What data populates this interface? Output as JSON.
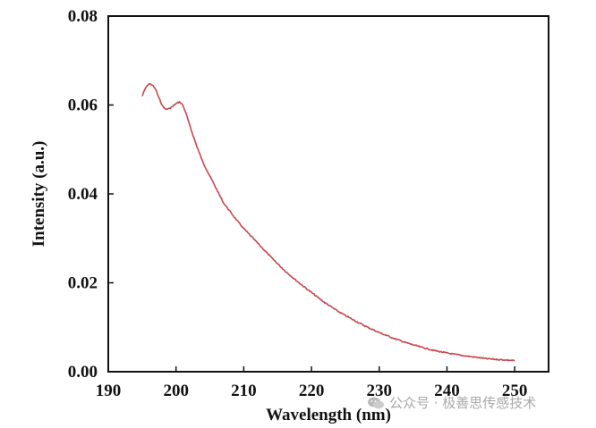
{
  "chart_data": {
    "type": "line",
    "title": "",
    "xlabel": "Wavelength (nm)",
    "ylabel": "Intensity (a.u.)",
    "xlim": [
      190,
      255
    ],
    "ylim": [
      0.0,
      0.08
    ],
    "x_ticks": [
      190,
      200,
      210,
      220,
      230,
      240,
      250
    ],
    "x_tick_labels": [
      "190",
      "200",
      "210",
      "220",
      "230",
      "240",
      "250"
    ],
    "y_ticks": [
      0.0,
      0.02,
      0.04,
      0.06,
      0.08
    ],
    "y_tick_labels": [
      "0.00",
      "0.02",
      "0.04",
      "0.06",
      "0.08"
    ],
    "grid": false,
    "legend": "none",
    "series": [
      {
        "color": "#c8474e",
        "x": [
          195,
          195.5,
          196,
          196.5,
          197,
          197.5,
          198,
          198.5,
          199,
          199.5,
          200,
          200.5,
          201,
          201.5,
          202,
          203,
          204,
          205,
          206,
          207,
          208,
          209,
          210,
          212,
          214,
          216,
          218,
          220,
          222,
          224,
          226,
          228,
          230,
          232,
          234,
          236,
          238,
          240,
          242,
          244,
          246,
          248,
          250
        ],
        "y": [
          0.062,
          0.0638,
          0.0648,
          0.0645,
          0.0635,
          0.0615,
          0.0598,
          0.059,
          0.0592,
          0.0597,
          0.0603,
          0.0607,
          0.06,
          0.058,
          0.0555,
          0.051,
          0.047,
          0.044,
          0.041,
          0.038,
          0.036,
          0.034,
          0.0322,
          0.029,
          0.0258,
          0.0228,
          0.0202,
          0.0178,
          0.0155,
          0.0135,
          0.0118,
          0.0102,
          0.0088,
          0.0076,
          0.0065,
          0.0056,
          0.0048,
          0.0042,
          0.0037,
          0.0033,
          0.0029,
          0.0027,
          0.0025
        ]
      }
    ]
  },
  "watermark": {
    "text": "公众号 · 极善思传感技术",
    "icon": "wechat-logo"
  }
}
